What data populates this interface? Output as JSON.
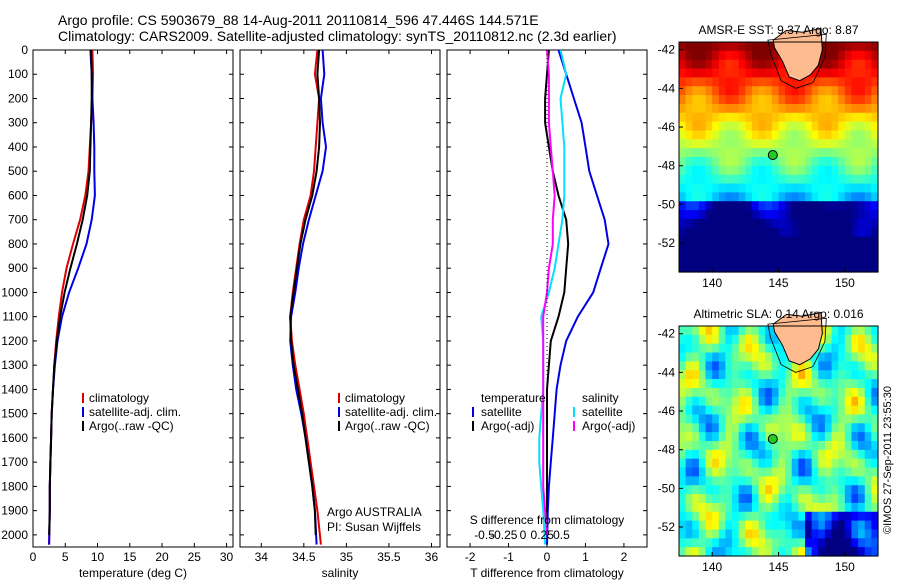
{
  "header": {
    "line1": "Argo profile: CS 5903679_88 14-Aug-2011 20110814_596 47.446S 144.571E",
    "line2": "Climatology: CARS2009. Satellite-adjusted climatology: synTS_20110812.nc (2.3d earlier)"
  },
  "colors": {
    "red": "#e00000",
    "blue": "#0000e6",
    "black": "#000000",
    "cyan": "#00e0ff",
    "magenta": "#ff00ff"
  },
  "chart_data": [
    {
      "id": "temperature",
      "type": "line",
      "xlabel": "temperature (deg C)",
      "xlim": [
        0,
        31
      ],
      "xticks": [
        0,
        5,
        10,
        15,
        20,
        25,
        30
      ],
      "ylim": [
        0,
        2050
      ],
      "yticks": [
        0,
        100,
        200,
        300,
        400,
        500,
        600,
        700,
        800,
        900,
        1000,
        1100,
        1200,
        1300,
        1400,
        1500,
        1600,
        1700,
        1800,
        1900,
        2000
      ],
      "yreverse": true,
      "legend": [
        "climatology",
        "satellite-adj. clim.",
        "Argo(..raw -QC)"
      ],
      "series": [
        {
          "name": "climatology",
          "color": "red",
          "x": [
            9.2,
            9.3,
            9.2,
            9.0,
            8.8,
            8.6,
            8.1,
            7.3,
            6.2,
            5.2,
            4.5,
            4.0,
            3.6,
            3.3,
            3.1,
            2.9,
            2.8,
            2.7,
            2.6,
            2.6,
            2.5
          ],
          "y": [
            0,
            100,
            200,
            300,
            400,
            500,
            600,
            700,
            800,
            900,
            1000,
            1100,
            1200,
            1300,
            1400,
            1500,
            1600,
            1700,
            1800,
            1900,
            2040
          ]
        },
        {
          "name": "satellite-adj. clim.",
          "color": "blue",
          "x": [
            8.9,
            9.1,
            9.2,
            9.4,
            9.5,
            9.5,
            9.6,
            9.1,
            8.3,
            7.0,
            5.6,
            4.5,
            3.8,
            3.4,
            3.1,
            2.9,
            2.8,
            2.7,
            2.6,
            2.6,
            2.5
          ],
          "y": [
            0,
            100,
            200,
            300,
            400,
            500,
            600,
            700,
            800,
            900,
            1000,
            1100,
            1200,
            1300,
            1400,
            1500,
            1600,
            1700,
            1800,
            1900,
            2040
          ]
        },
        {
          "name": "Argo(..raw -QC)",
          "color": "black",
          "x": [
            9.0,
            9.1,
            9.1,
            9.0,
            8.9,
            8.8,
            8.4,
            7.7,
            6.8,
            5.8,
            4.9,
            4.2,
            3.7,
            3.3,
            3.1,
            2.9,
            2.8,
            2.7,
            2.6,
            2.6,
            2.5
          ],
          "y": [
            0,
            100,
            200,
            300,
            400,
            500,
            600,
            700,
            800,
            900,
            1000,
            1100,
            1200,
            1300,
            1400,
            1500,
            1600,
            1700,
            1800,
            1900,
            2000
          ]
        }
      ]
    },
    {
      "id": "salinity",
      "type": "line",
      "xlabel": "salinity",
      "xlim": [
        33.75,
        36.1
      ],
      "xticks": [
        34,
        34.5,
        35,
        35.5,
        36
      ],
      "ylim": [
        0,
        2050
      ],
      "yreverse": true,
      "legend": [
        "climatology",
        "satellite-adj. clim.",
        "Argo(..raw -QC)"
      ],
      "annotation": [
        "Argo AUSTRALIA",
        "PI: Susan Wijffels"
      ],
      "series": [
        {
          "name": "climatology",
          "color": "red",
          "x": [
            34.66,
            34.63,
            34.68,
            34.66,
            34.64,
            34.62,
            34.58,
            34.5,
            34.45,
            34.41,
            34.37,
            34.34,
            34.36,
            34.4,
            34.45,
            34.5,
            34.54,
            34.58,
            34.62,
            34.66,
            34.7
          ],
          "y": [
            0,
            100,
            200,
            300,
            400,
            500,
            600,
            700,
            800,
            900,
            1000,
            1100,
            1200,
            1300,
            1400,
            1500,
            1600,
            1700,
            1800,
            1900,
            2040
          ]
        },
        {
          "name": "satellite-adj. clim.",
          "color": "blue",
          "x": [
            34.72,
            34.74,
            34.7,
            34.72,
            34.76,
            34.72,
            34.64,
            34.56,
            34.49,
            34.44,
            34.4,
            34.35,
            34.34,
            34.37,
            34.41,
            34.47,
            34.52,
            34.56,
            34.6,
            34.63,
            34.65
          ],
          "y": [
            0,
            100,
            200,
            300,
            400,
            500,
            600,
            700,
            800,
            900,
            1000,
            1100,
            1200,
            1300,
            1400,
            1500,
            1600,
            1700,
            1800,
            1900,
            2040
          ]
        },
        {
          "name": "Argo(..raw -QC)",
          "color": "black",
          "x": [
            34.68,
            34.66,
            34.68,
            34.69,
            34.68,
            34.65,
            34.6,
            34.52,
            34.46,
            34.42,
            34.38,
            34.34,
            34.35,
            34.38,
            34.43,
            34.48,
            34.52,
            34.56,
            34.6,
            34.63,
            34.64
          ],
          "y": [
            0,
            100,
            200,
            300,
            400,
            500,
            600,
            700,
            800,
            900,
            1000,
            1100,
            1200,
            1300,
            1400,
            1500,
            1600,
            1700,
            1800,
            1900,
            2000
          ]
        }
      ]
    },
    {
      "id": "difference",
      "type": "line",
      "xlabel": "T difference from climatology",
      "xlabel_top": "S difference from climatology",
      "xlim": [
        -2.6,
        2.6
      ],
      "xticks": [
        -2,
        -1,
        0,
        1,
        2
      ],
      "xticks_s": [
        -0.5,
        -0.25,
        0,
        0.25,
        0.5
      ],
      "xticklabels_s": [
        "-0.5",
        "-0.25",
        "0",
        "0.25",
        "0.5"
      ],
      "ylim": [
        0,
        2050
      ],
      "yreverse": true,
      "legend_headers": [
        "temperature",
        "salinity"
      ],
      "legend": [
        "satellite",
        "Argo(-adj)",
        "satellite",
        "Argo(-adj)"
      ],
      "series": [
        {
          "name": "T satellite",
          "color": "blue",
          "x": [
            0.3,
            0.5,
            0.7,
            0.9,
            1.0,
            1.1,
            1.3,
            1.5,
            1.6,
            1.4,
            1.2,
            0.8,
            0.5,
            0.35,
            0.25,
            0.2,
            0.15,
            0.1,
            0.05,
            0.02,
            0.0
          ],
          "y": [
            0,
            100,
            200,
            300,
            400,
            500,
            600,
            700,
            800,
            900,
            1000,
            1100,
            1200,
            1300,
            1400,
            1500,
            1600,
            1700,
            1800,
            1900,
            2040
          ]
        },
        {
          "name": "T Argo(-adj)",
          "color": "black",
          "x": [
            0.05,
            0.0,
            -0.05,
            -0.05,
            0.05,
            0.15,
            0.3,
            0.5,
            0.55,
            0.5,
            0.45,
            0.3,
            0.1,
            0.05,
            0.0,
            0.0,
            0.0,
            0.0,
            0.0,
            0.0,
            0.0
          ],
          "y": [
            0,
            100,
            200,
            300,
            400,
            500,
            600,
            700,
            800,
            900,
            1000,
            1100,
            1200,
            1300,
            1400,
            1500,
            1600,
            1700,
            1800,
            1900,
            2000
          ]
        },
        {
          "name": "S satellite",
          "color": "cyan",
          "x": [
            0.35,
            0.5,
            0.35,
            0.4,
            0.45,
            0.45,
            0.45,
            0.4,
            0.3,
            0.2,
            0.05,
            -0.15,
            -0.1,
            -0.1,
            -0.1,
            -0.15,
            -0.2,
            -0.2,
            -0.15,
            -0.1,
            -0.05
          ],
          "y": [
            0,
            100,
            200,
            300,
            400,
            500,
            600,
            700,
            800,
            900,
            1000,
            1100,
            1200,
            1300,
            1400,
            1500,
            1600,
            1700,
            1800,
            1900,
            2040
          ]
        },
        {
          "name": "S Argo(-adj)",
          "color": "magenta",
          "x": [
            0.0,
            0.05,
            0.05,
            0.05,
            0.1,
            0.15,
            0.2,
            0.15,
            0.15,
            0.05,
            0.0,
            -0.1,
            -0.1,
            -0.1,
            -0.1,
            -0.1,
            -0.1,
            -0.1,
            -0.1,
            -0.05,
            0.0
          ],
          "y": [
            0,
            100,
            200,
            300,
            400,
            500,
            600,
            700,
            800,
            900,
            1000,
            1100,
            1200,
            1300,
            1400,
            1500,
            1600,
            1700,
            1800,
            1900,
            2000
          ]
        }
      ]
    },
    {
      "id": "sst_map",
      "type": "heatmap",
      "title": "AMSR-E SST: 9.37 Argo: 8.87",
      "xlim": [
        137.5,
        152.5
      ],
      "ylim": [
        -53.5,
        -41.6
      ],
      "xticks": [
        140,
        145,
        150
      ],
      "yticks": [
        -42,
        -44,
        -46,
        -48,
        -50,
        -52
      ],
      "marker": {
        "lon": 144.571,
        "lat": -47.446
      }
    },
    {
      "id": "sla_map",
      "type": "heatmap",
      "title": "Altimetric SLA: 0.14 Argo: 0.016",
      "xlim": [
        137.5,
        152.5
      ],
      "ylim": [
        -53.5,
        -41.6
      ],
      "xticks": [
        140,
        145,
        150
      ],
      "yticks": [
        -42,
        -44,
        -46,
        -48,
        -50,
        -52
      ],
      "marker": {
        "lon": 144.571,
        "lat": -47.446
      }
    }
  ],
  "credit": "©IMOS 27-Sep-2011 23:55:30"
}
